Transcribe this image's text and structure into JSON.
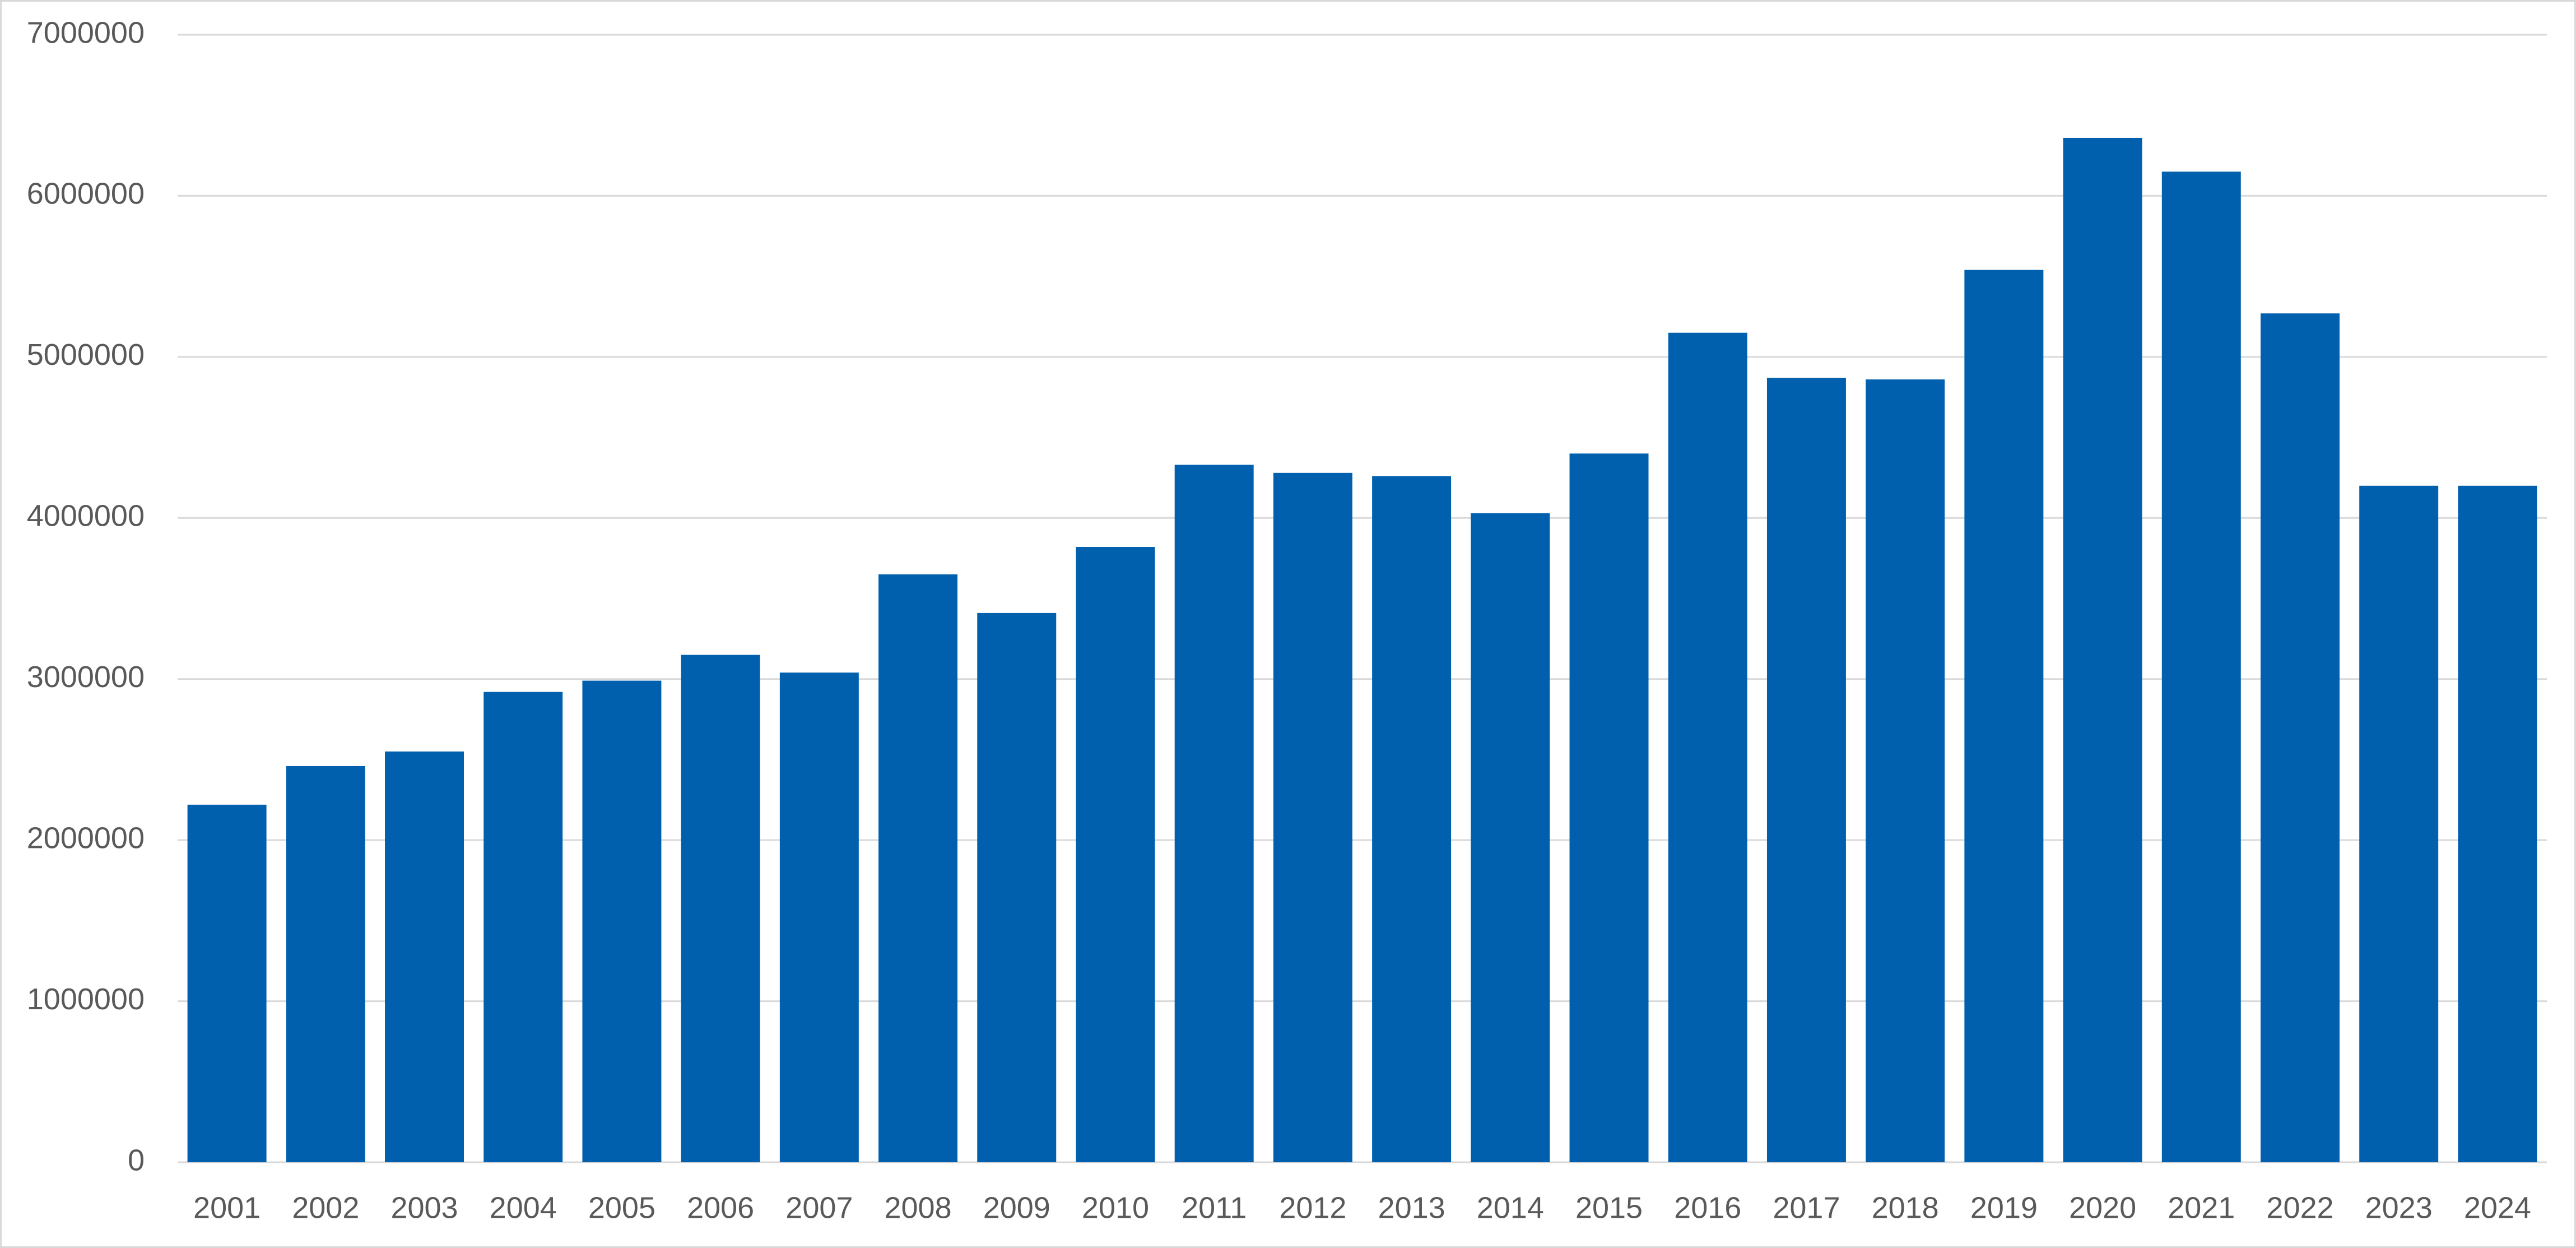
{
  "chart_data": {
    "type": "bar",
    "categories": [
      "2001",
      "2002",
      "2003",
      "2004",
      "2005",
      "2006",
      "2007",
      "2008",
      "2009",
      "2010",
      "2011",
      "2012",
      "2013",
      "2014",
      "2015",
      "2016",
      "2017",
      "2018",
      "2019",
      "2020",
      "2021",
      "2022",
      "2023",
      "2024"
    ],
    "values": [
      2220000,
      2460000,
      2550000,
      2920000,
      2990000,
      3150000,
      3040000,
      3650000,
      3410000,
      3820000,
      4330000,
      4280000,
      4260000,
      4030000,
      4400000,
      5150000,
      4870000,
      4860000,
      5540000,
      6360000,
      6150000,
      5270000,
      4200000,
      4200000
    ],
    "color": "#0060ae",
    "ylim": [
      0,
      7000000
    ],
    "yticks": [
      0,
      1000000,
      2000000,
      3000000,
      4000000,
      5000000,
      6000000,
      7000000
    ],
    "grid": true
  }
}
